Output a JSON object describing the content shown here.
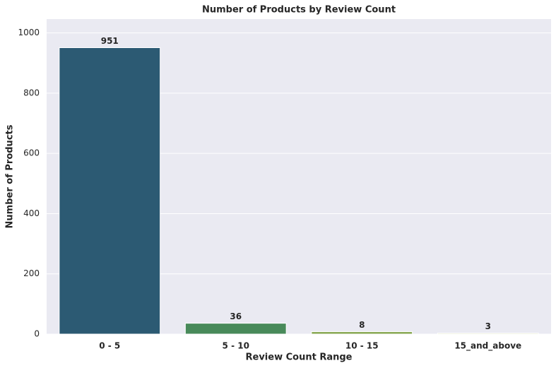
{
  "chart_data": {
    "type": "bar",
    "title": "Number of Products by Review Count",
    "x_label": "Review Count Range",
    "y_label": "Number of Products",
    "categories": [
      "0 - 5",
      "5 - 10",
      "10 - 15",
      "15_and_above"
    ],
    "values": [
      951,
      36,
      8,
      3
    ],
    "colors": [
      "#2c5a73",
      "#488a5a",
      "#84a54e",
      "#d4d9a8"
    ],
    "ylim": [
      0,
      1046
    ],
    "yticks": [
      0,
      200,
      400,
      600,
      800,
      1000
    ],
    "grid": true
  }
}
